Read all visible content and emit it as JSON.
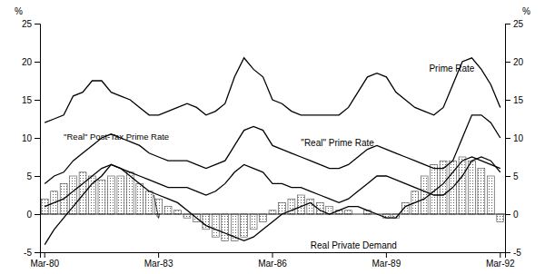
{
  "chart_data": {
    "type": "bar",
    "categories": [
      "Mar-80",
      null,
      null,
      null,
      null,
      null,
      null,
      null,
      null,
      null,
      null,
      null,
      "Mar-83",
      null,
      null,
      null,
      null,
      null,
      null,
      null,
      null,
      null,
      null,
      null,
      "Mar-86",
      null,
      null,
      null,
      null,
      null,
      null,
      null,
      null,
      null,
      null,
      null,
      "Mar-89",
      null,
      null,
      null,
      null,
      null,
      null,
      null,
      null,
      null,
      null,
      null,
      "Mar-92"
    ],
    "series": [
      {
        "type": "bar",
        "color": "#444444",
        "values": [
          2.0,
          3.0,
          4.0,
          5.0,
          5.5,
          5.0,
          4.5,
          5.0,
          5.0,
          5.5,
          4.0,
          3.0,
          2.0,
          1.0,
          0.5,
          -0.5,
          -1.0,
          -2.0,
          -3.0,
          -3.5,
          -3.5,
          -3.0,
          -2.0,
          -1.0,
          0.5,
          1.5,
          2.0,
          2.5,
          2.0,
          1.5,
          1.0,
          0.5,
          0.5,
          0.0,
          0.5,
          0.0,
          -0.5,
          -0.5,
          1.5,
          3.0,
          5.0,
          6.5,
          7.0,
          7.0,
          7.5,
          7.0,
          6.0,
          5.0,
          -1.0
        ]
      },
      {
        "name": "Prime Rate",
        "type": "line",
        "color": "#000000",
        "values": [
          12.0,
          12.5,
          13.0,
          15.5,
          16.0,
          17.5,
          17.5,
          16.0,
          15.5,
          15.0,
          14.0,
          13.0,
          13.0,
          13.5,
          14.0,
          14.5,
          14.0,
          13.0,
          13.5,
          14.5,
          18.0,
          20.5,
          19.0,
          18.0,
          15.0,
          14.5,
          13.5,
          13.0,
          13.0,
          13.0,
          13.0,
          13.0,
          14.0,
          16.0,
          18.0,
          18.5,
          18.0,
          16.0,
          15.0,
          14.0,
          13.5,
          13.0,
          14.0,
          17.0,
          20.0,
          20.5,
          19.0,
          17.0,
          14.0
        ]
      },
      {
        "name": "\"Real\" Prime Rate",
        "type": "line",
        "color": "#000000",
        "values": [
          4.0,
          5.0,
          5.5,
          7.0,
          8.0,
          9.0,
          10.0,
          10.5,
          10.0,
          9.5,
          9.0,
          8.0,
          7.5,
          7.0,
          7.0,
          7.0,
          6.5,
          6.0,
          6.5,
          7.0,
          9.0,
          11.0,
          11.5,
          11.0,
          9.0,
          8.5,
          8.0,
          7.5,
          7.0,
          6.5,
          6.0,
          6.0,
          6.5,
          7.5,
          8.5,
          9.0,
          8.5,
          8.0,
          7.5,
          7.0,
          6.5,
          6.0,
          6.0,
          7.0,
          10.0,
          13.0,
          13.0,
          12.0,
          10.0
        ]
      },
      {
        "name": "\"Real\" Post-Tax Prime Rate",
        "type": "line",
        "color": "#000000",
        "values": [
          1.0,
          1.5,
          2.0,
          3.0,
          4.0,
          5.0,
          6.0,
          6.5,
          6.0,
          5.5,
          5.0,
          4.5,
          4.0,
          3.5,
          3.5,
          3.5,
          3.0,
          2.5,
          3.0,
          4.0,
          5.5,
          6.5,
          6.0,
          5.5,
          4.0,
          4.0,
          3.5,
          3.5,
          3.0,
          2.5,
          2.0,
          1.5,
          2.0,
          3.0,
          4.0,
          5.0,
          5.0,
          4.5,
          4.0,
          3.5,
          3.0,
          2.5,
          2.5,
          3.5,
          5.0,
          7.0,
          7.5,
          7.0,
          5.5
        ]
      },
      {
        "name": "Real Private Demand",
        "type": "line",
        "color": "#000000",
        "values": [
          -4.0,
          -2.0,
          -0.5,
          1.0,
          2.5,
          4.0,
          5.0,
          6.5,
          6.0,
          5.0,
          4.0,
          3.0,
          2.5,
          2.0,
          1.5,
          0.5,
          -0.5,
          -1.5,
          -2.0,
          -2.5,
          -3.0,
          -3.5,
          -3.0,
          -2.0,
          -1.0,
          0.0,
          0.5,
          1.0,
          1.5,
          0.5,
          0.0,
          0.5,
          1.0,
          1.0,
          0.5,
          0.0,
          -0.5,
          -0.5,
          1.0,
          1.5,
          2.0,
          3.0,
          4.0,
          5.5,
          7.0,
          7.5,
          7.0,
          6.5,
          6.0
        ]
      }
    ],
    "ylim": [
      -5,
      25
    ],
    "yticks": [
      -5,
      0,
      5,
      10,
      15,
      20,
      25
    ],
    "y2lim": [
      -5,
      25
    ],
    "y2ticks": [
      -5,
      0,
      5,
      10,
      15,
      20,
      25
    ],
    "ylabel": "%",
    "y2label": "%",
    "grid": false
  }
}
